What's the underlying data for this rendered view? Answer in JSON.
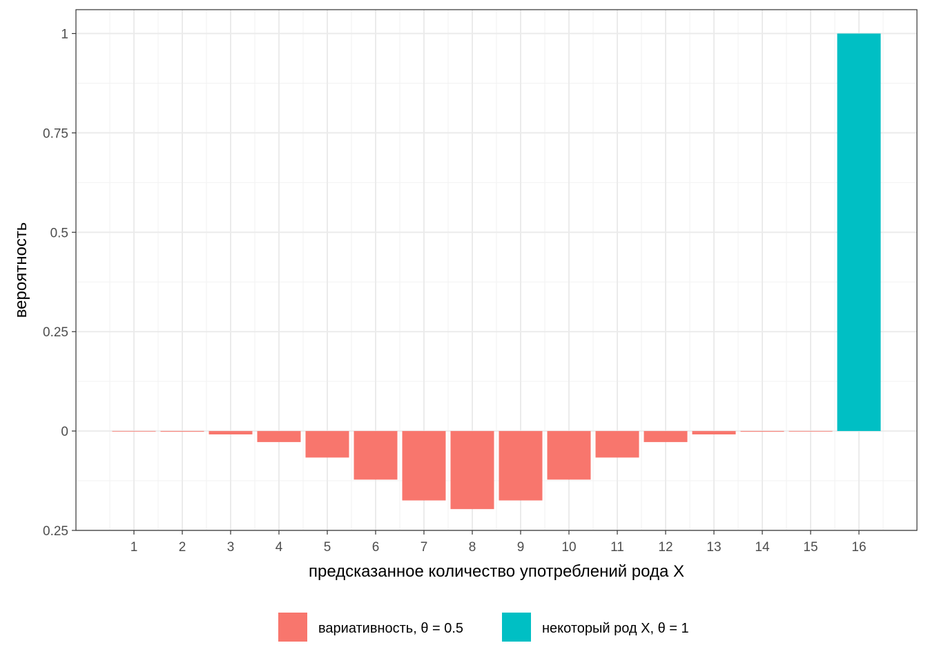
{
  "chart_data": {
    "type": "bar",
    "xlabel": "предсказанное количество употреблений рода X",
    "ylabel": "вероятность",
    "x": [
      1,
      2,
      3,
      4,
      5,
      6,
      7,
      8,
      9,
      10,
      11,
      12,
      13,
      14,
      15,
      16
    ],
    "y_tick_values": [
      -0.25,
      0,
      0.25,
      0.5,
      0.75,
      1
    ],
    "y_tick_labels": [
      "0.25",
      "0",
      "0.25",
      "0.5",
      "0.75",
      "1"
    ],
    "ylim": [
      -0.25,
      1.06
    ],
    "xlim": [
      -0.2,
      17.2
    ],
    "grid": true,
    "legend_position": "bottom",
    "series": [
      {
        "name": "вариативность, θ = 0.5",
        "color": "#F8766D",
        "values": [
          -0.0002,
          -0.0018,
          -0.0085,
          -0.0278,
          -0.0667,
          -0.1222,
          -0.1746,
          -0.1964,
          -0.1746,
          -0.1222,
          -0.0667,
          -0.0278,
          -0.0085,
          -0.0018,
          -0.0002,
          null
        ]
      },
      {
        "name": "некоторый род X, θ = 1",
        "color": "#00BFC4",
        "values": [
          null,
          null,
          null,
          null,
          null,
          null,
          null,
          null,
          null,
          null,
          null,
          null,
          null,
          null,
          null,
          1.0
        ]
      }
    ]
  }
}
